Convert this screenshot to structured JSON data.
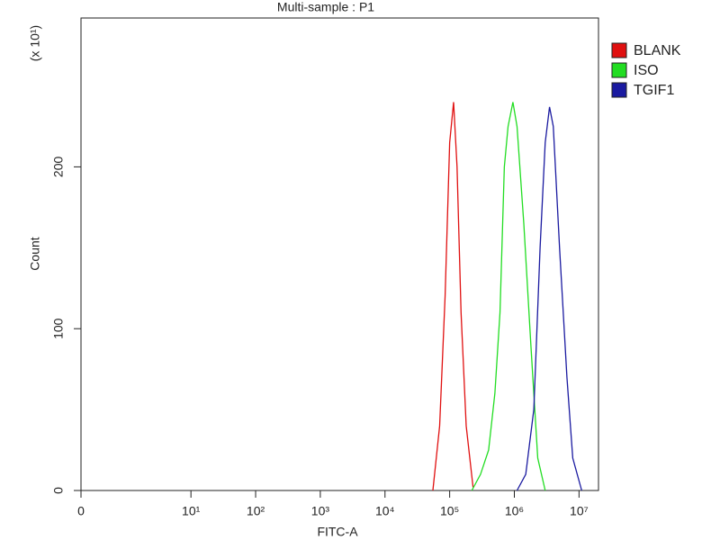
{
  "chart_data": {
    "type": "line",
    "title": "Multi-sample : P1",
    "x_label": "FITC-A",
    "y_label": "Count",
    "y_multiplier": "(x 10¹)",
    "xscale": "symlog",
    "linthresh": 10,
    "xlim": [
      0,
      20000000
    ],
    "ylim": [
      0,
      292
    ],
    "xticks": [
      0,
      {
        "value": 10,
        "label": "10¹"
      },
      {
        "value": 100,
        "label": "10²"
      },
      {
        "value": 1000,
        "label": "10³"
      },
      {
        "value": 10000,
        "label": "10⁴"
      },
      {
        "value": 100000,
        "label": "10⁵"
      },
      {
        "value": 1000000,
        "label": "10⁶"
      },
      {
        "value": 10000000,
        "label": "10⁷"
      }
    ],
    "yticks": [
      0,
      100,
      200
    ],
    "legend": "right-top",
    "series": [
      {
        "name": "BLANK",
        "color": "#e01010",
        "x": [
          55000,
          70000,
          85000,
          100000,
          115000,
          130000,
          150000,
          180000,
          230000
        ],
        "values": [
          0,
          40,
          120,
          215,
          240,
          200,
          110,
          40,
          2
        ]
      },
      {
        "name": "ISO",
        "color": "#22dd22",
        "x": [
          220000,
          300000,
          400000,
          500000,
          600000,
          700000,
          800000,
          950000,
          1100000,
          1400000,
          1800000,
          2300000,
          3000000
        ],
        "values": [
          0,
          10,
          25,
          60,
          110,
          200,
          225,
          240,
          225,
          165,
          90,
          20,
          0
        ]
      },
      {
        "name": "TGIF1",
        "color": "#1a1aa0",
        "x": [
          1100000,
          1500000,
          2000000,
          2500000,
          3000000,
          3500000,
          4000000,
          5000000,
          6500000,
          8000000,
          11000000
        ],
        "values": [
          0,
          10,
          50,
          150,
          215,
          237,
          225,
          150,
          70,
          20,
          0
        ]
      }
    ]
  }
}
